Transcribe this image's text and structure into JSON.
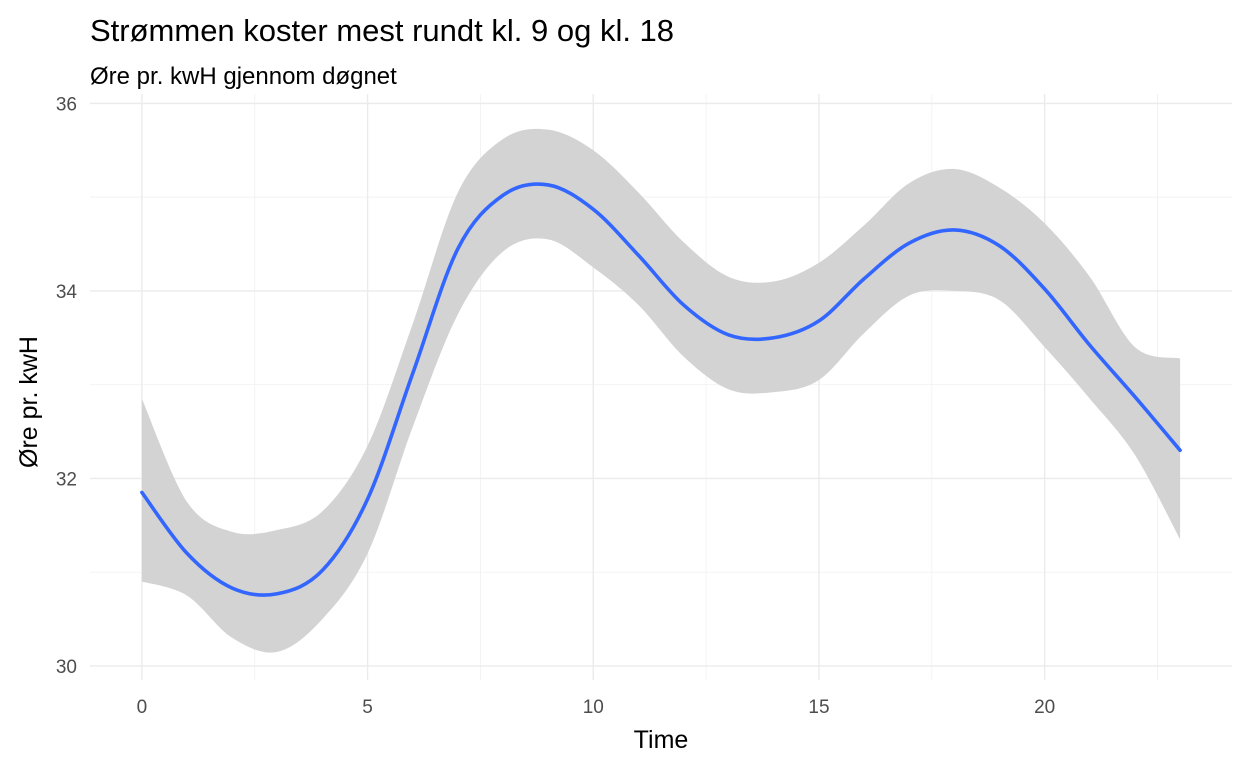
{
  "chart_data": {
    "type": "line",
    "title": "Strømmen koster mest rundt kl. 9 og kl. 18",
    "subtitle": "Øre pr. kwH gjennom døgnet",
    "xlabel": "Time",
    "ylabel": "Øre pr. kwH",
    "xlim": [
      -1.15,
      24.15
    ],
    "ylim": [
      29.85,
      36.1
    ],
    "x_ticks": [
      0,
      5,
      10,
      15,
      20
    ],
    "y_ticks": [
      30,
      32,
      34,
      36
    ],
    "x_tick_labels": [
      "0",
      "5",
      "10",
      "15",
      "20"
    ],
    "y_tick_labels": [
      "30",
      "32",
      "34",
      "36"
    ],
    "grid": true,
    "legend": "none",
    "colors": {
      "line": "#3366FF",
      "ribbon": "#d3d3d3",
      "grid_major": "#ebebeb",
      "grid_minor": "#f2f2f2"
    },
    "series": [
      {
        "smooth_line": true,
        "confidence_band": true,
        "x": [
          0,
          1,
          2,
          3,
          4,
          5,
          6,
          7,
          8,
          9,
          10,
          11,
          12,
          13,
          14,
          15,
          16,
          17,
          18,
          19,
          20,
          21,
          22,
          23
        ],
        "y": [
          31.85,
          31.2,
          30.83,
          30.77,
          31.02,
          31.78,
          33.12,
          34.45,
          35.02,
          35.13,
          34.87,
          34.38,
          33.85,
          33.53,
          33.5,
          33.68,
          34.13,
          34.51,
          34.65,
          34.48,
          34.02,
          33.42,
          32.87,
          32.3
        ],
        "lower": [
          30.9,
          30.75,
          30.3,
          30.15,
          30.5,
          31.2,
          32.55,
          33.75,
          34.42,
          34.55,
          34.25,
          33.85,
          33.3,
          32.95,
          32.92,
          33.05,
          33.55,
          33.95,
          34.0,
          33.9,
          33.4,
          32.85,
          32.25,
          31.35
        ],
        "upper": [
          32.85,
          31.75,
          31.43,
          31.45,
          31.65,
          32.35,
          33.65,
          35.05,
          35.62,
          35.72,
          35.5,
          35.05,
          34.52,
          34.15,
          34.1,
          34.3,
          34.7,
          35.15,
          35.3,
          35.1,
          34.72,
          34.15,
          33.4,
          33.28
        ]
      }
    ]
  }
}
